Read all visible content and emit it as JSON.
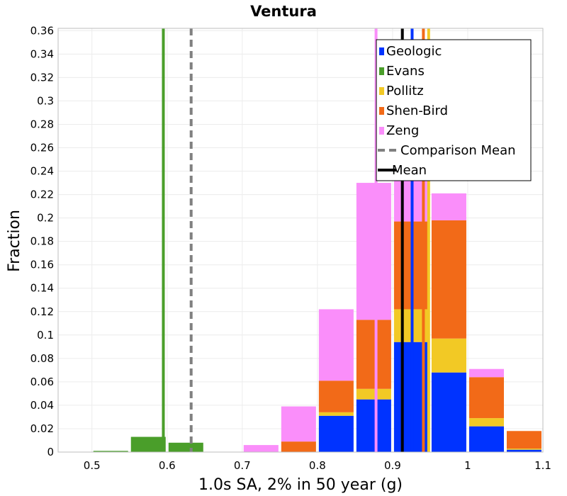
{
  "chart_data": {
    "type": "bar",
    "stacked": true,
    "title": "Ventura",
    "xlabel": "1.0s SA, 2% in 50 year (g)",
    "ylabel": "Fraction",
    "xlim": [
      0.455,
      1.1
    ],
    "ylim": [
      0,
      0.362
    ],
    "xticks": [
      "0.5",
      "0.6",
      "0.7",
      "0.8",
      "0.9",
      "1",
      "1.1"
    ],
    "xtick_values": [
      0.5,
      0.6,
      0.7,
      0.8,
      0.9,
      1.0,
      1.1
    ],
    "yticks": [
      "0",
      "0.02",
      "0.04",
      "0.06",
      "0.08",
      "0.1",
      "0.12",
      "0.14",
      "0.16",
      "0.18",
      "0.2",
      "0.22",
      "0.24",
      "0.26",
      "0.28",
      "0.3",
      "0.32",
      "0.34",
      "0.36"
    ],
    "ytick_values": [
      0,
      0.02,
      0.04,
      0.06,
      0.08,
      0.1,
      0.12,
      0.14,
      0.16,
      0.18,
      0.2,
      0.22,
      0.24,
      0.26,
      0.28,
      0.3,
      0.32,
      0.34,
      0.36
    ],
    "grid": true,
    "legend_position": "top-right",
    "bin_width": 0.05,
    "bin_centers": [
      0.525,
      0.575,
      0.625,
      0.725,
      0.775,
      0.825,
      0.875,
      0.925,
      0.975,
      1.025,
      1.075
    ],
    "series": [
      {
        "name": "Geologic",
        "color": "#0033ff",
        "values": [
          0,
          0,
          0,
          0,
          0,
          0.031,
          0.045,
          0.094,
          0.068,
          0.022,
          0.002
        ]
      },
      {
        "name": "Evans",
        "color": "#4a9e2a",
        "values": [
          0.001,
          0.013,
          0.008,
          0,
          0,
          0,
          0,
          0,
          0,
          0,
          0
        ]
      },
      {
        "name": "Pollitz",
        "color": "#f2c925",
        "values": [
          0,
          0,
          0,
          0,
          0,
          0.003,
          0.009,
          0.028,
          0.029,
          0.007,
          0.001
        ]
      },
      {
        "name": "Shen-Bird",
        "color": "#f26a18",
        "values": [
          0,
          0,
          0,
          0,
          0.009,
          0.027,
          0.059,
          0.075,
          0.101,
          0.035,
          0.015
        ]
      },
      {
        "name": "Zeng",
        "color": "#fa8efa",
        "values": [
          0,
          0,
          0,
          0.006,
          0.03,
          0.061,
          0.117,
          0.079,
          0.023,
          0.007,
          0
        ]
      }
    ],
    "vertical_lines": [
      {
        "series": "Evans",
        "x": 0.595,
        "color": "#4a9e2a",
        "style": "solid"
      },
      {
        "series": "Zeng",
        "x": 0.878,
        "color": "#fa8efa",
        "style": "solid"
      },
      {
        "series": "Geologic",
        "x": 0.926,
        "color": "#0033ff",
        "style": "solid"
      },
      {
        "series": "Shen-Bird",
        "x": 0.941,
        "color": "#f26a18",
        "style": "solid"
      },
      {
        "series": "Pollitz",
        "x": 0.948,
        "color": "#f2c925",
        "style": "solid"
      },
      {
        "series": "Comparison Mean",
        "x": 0.632,
        "color": "#808080",
        "style": "dashed"
      },
      {
        "series": "Mean",
        "x": 0.913,
        "color": "#000000",
        "style": "solid"
      }
    ],
    "legend": [
      {
        "label": "Geologic",
        "color": "#0033ff",
        "kind": "box"
      },
      {
        "label": "Evans",
        "color": "#4a9e2a",
        "kind": "box"
      },
      {
        "label": "Pollitz",
        "color": "#f2c925",
        "kind": "box"
      },
      {
        "label": "Shen-Bird",
        "color": "#f26a18",
        "kind": "box"
      },
      {
        "label": "Zeng",
        "color": "#fa8efa",
        "kind": "box"
      },
      {
        "label": "Comparison Mean",
        "color": "#808080",
        "kind": "dashed"
      },
      {
        "label": "Mean",
        "color": "#000000",
        "kind": "line"
      }
    ]
  }
}
